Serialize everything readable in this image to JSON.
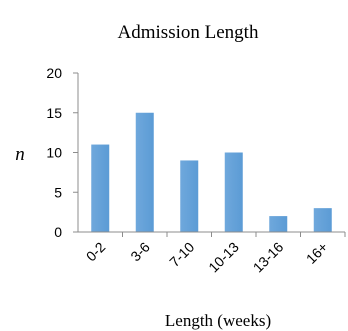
{
  "chart_data": {
    "type": "bar",
    "title": "Admission Length",
    "xlabel": "Length (weeks)",
    "ylabel": "n",
    "categories": [
      "0-2",
      "3-6",
      "7-10",
      "10-13",
      "13-16",
      "16+"
    ],
    "values": [
      11,
      15,
      9,
      10,
      2,
      3
    ],
    "ylim": [
      0,
      20
    ],
    "yticks": [
      "0",
      "5",
      "10",
      "15",
      "20"
    ],
    "grid": false,
    "legend": "none",
    "colors": {
      "bar": "#5b9bd5",
      "bar_light": "#6fa8dc",
      "axis": "#8c8c8c"
    }
  }
}
